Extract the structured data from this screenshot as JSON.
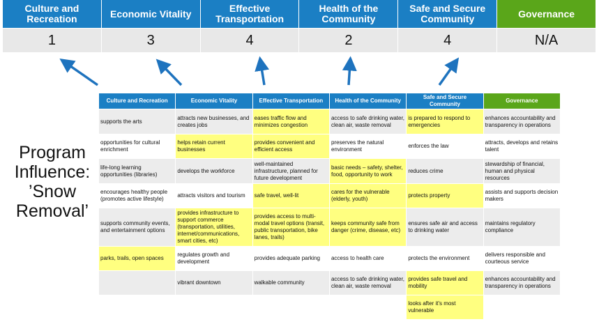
{
  "summary": {
    "columns": [
      {
        "label": "Culture and Recreation",
        "score": "1"
      },
      {
        "label": "Economic Vitality",
        "score": "3"
      },
      {
        "label": "Effective Transportation",
        "score": "4"
      },
      {
        "label": "Health of the Community",
        "score": "2"
      },
      {
        "label": "Safe and Secure Community",
        "score": "4"
      },
      {
        "label": "Governance",
        "score": "N/A"
      }
    ]
  },
  "program_label": "Program Influence: ’Snow Removal’",
  "colors": {
    "header_blue": "#1b7fc4",
    "governance_green": "#5aa61a",
    "highlight": "#ffff80",
    "arrow": "#1e73be"
  },
  "table": {
    "headers": [
      "Culture and Recreation",
      "Economic Vitality",
      "Effective Transportation",
      "Health of the Community",
      "Safe and Secure Community",
      "Governance"
    ],
    "rows": [
      {
        "cells": [
          "supports the arts",
          "attracts new businesses, and creates jobs",
          "eases traffic flow and minimizes congestion",
          "access to safe drinking water, clean air, waste removal",
          "is prepared to respond to emergencies",
          "enhances accountability and transparency in operations"
        ],
        "highlighted": [
          2,
          4
        ]
      },
      {
        "cells": [
          "opportunities for cultural enrichment",
          "helps retain current businesses",
          "provides convenient and efficient access",
          "preserves the natural environment",
          "enforces the law",
          "attracts, develops and retains talent"
        ],
        "highlighted": [
          1,
          2
        ]
      },
      {
        "cells": [
          "life-long learning opportunities (libraries)",
          "develops the workforce",
          "well-maintained infrastructure, planned for future development",
          "basic needs – safety, shelter, food, opportunity to work",
          "reduces crime",
          "stewardship of financial, human and physical resources"
        ],
        "highlighted": [
          3
        ]
      },
      {
        "cells": [
          "encourages healthy people (promotes active lifestyle)",
          "attracts visitors and tourism",
          "safe travel, well-lit",
          "cares for the vulnerable (elderly, youth)",
          "protects property",
          "assists and supports decision makers"
        ],
        "highlighted": [
          2,
          3,
          4
        ]
      },
      {
        "cells": [
          "supports community events, and entertainment options",
          "provides infrastructure to support commerce (transportation, utilities, internet/communications, smart cities, etc)",
          "provides access to multi-modal travel options (transit, public transportation, bike lanes, trails)",
          "keeps community safe from danger (crime, disease, etc)",
          "ensures safe air and access to drinking water",
          "maintains regulatory compliance"
        ],
        "highlighted": [
          1,
          2,
          3
        ]
      },
      {
        "cells": [
          "parks, trails, open spaces",
          "regulates growth and development",
          "provides adequate parking",
          "access to health care",
          "protects the environment",
          "delivers responsible and courteous service"
        ],
        "highlighted": [
          0
        ]
      },
      {
        "cells": [
          "",
          "vibrant downtown",
          "walkable community",
          "access to safe drinking water, clean air, waste removal",
          "provides safe travel and mobility",
          "enhances accountability and transparency in operations"
        ],
        "highlighted": [
          4
        ]
      },
      {
        "cells": [
          "",
          "",
          "",
          "",
          "looks after it's most vulnerable",
          ""
        ],
        "highlighted": [
          4
        ]
      }
    ]
  }
}
